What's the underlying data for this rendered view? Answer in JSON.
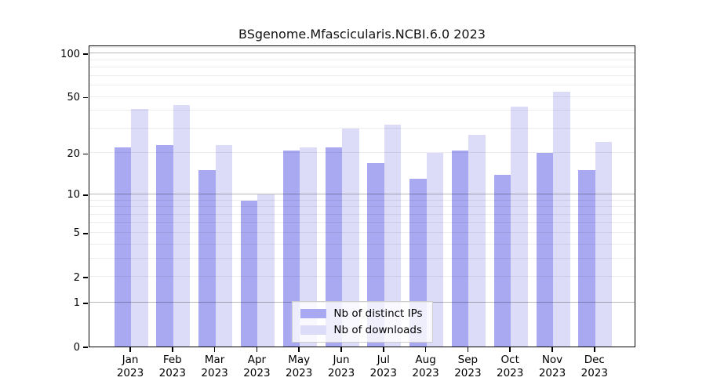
{
  "chart_data": {
    "type": "bar",
    "title": "BSgenome.Mfascicularis.NCBI.6.0 2023",
    "categories": [
      "Jan",
      "Feb",
      "Mar",
      "Apr",
      "May",
      "Jun",
      "Jul",
      "Aug",
      "Sep",
      "Oct",
      "Nov",
      "Dec"
    ],
    "category_year": "2023",
    "series": [
      {
        "name": "Nb of distinct IPs",
        "color": "#a9a9f2",
        "values": [
          22,
          23,
          15,
          9,
          21,
          22,
          17,
          13,
          21,
          14,
          20,
          15
        ]
      },
      {
        "name": "Nb of downloads",
        "color": "#dcdcf8",
        "values": [
          41,
          44,
          23,
          10,
          22,
          30,
          32,
          20,
          27,
          43,
          54,
          24
        ]
      }
    ],
    "yscale": "log1p",
    "ylim": [
      0,
      115
    ],
    "ytick_labels": [
      0,
      1,
      2,
      5,
      10,
      20,
      50,
      100
    ],
    "major_gridlines": [
      1,
      10,
      100
    ],
    "minor_gridlines": [
      2,
      3,
      4,
      5,
      6,
      7,
      8,
      9,
      20,
      30,
      40,
      50,
      60,
      70,
      80,
      90,
      110
    ],
    "grid": true,
    "legend_position": "lower-center",
    "xlabel": "",
    "ylabel": ""
  }
}
